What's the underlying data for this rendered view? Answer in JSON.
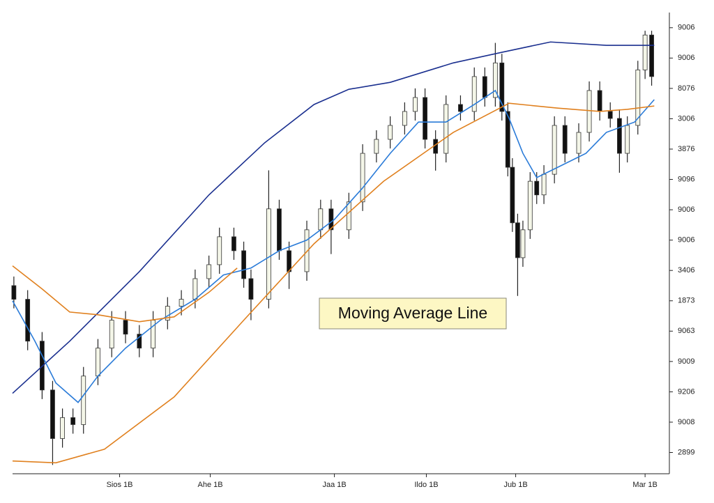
{
  "chart_data": {
    "type": "candlestick",
    "annotation": "Moving Average Line",
    "xlim": [
      0,
      100
    ],
    "ylim": [
      0.3,
      15.5
    ],
    "xticks": [
      {
        "value": 16.3,
        "label": "Sios 1B"
      },
      {
        "value": 30.1,
        "label": "Ahe 1B"
      },
      {
        "value": 49.0,
        "label": "Jaa 1B"
      },
      {
        "value": 63.0,
        "label": "Ildo 1B"
      },
      {
        "value": 76.6,
        "label": "Jub 1B"
      },
      {
        "value": 96.3,
        "label": "Mar 1B"
      }
    ],
    "yticks": [
      {
        "value": 1,
        "label": "2899"
      },
      {
        "value": 2,
        "label": "9008"
      },
      {
        "value": 3,
        "label": "9206"
      },
      {
        "value": 4,
        "label": "9009"
      },
      {
        "value": 5,
        "label": "9063"
      },
      {
        "value": 6,
        "label": "1873"
      },
      {
        "value": 7,
        "label": "3406"
      },
      {
        "value": 8,
        "label": "9006"
      },
      {
        "value": 9,
        "label": "9006"
      },
      {
        "value": 10,
        "label": "9096"
      },
      {
        "value": 11,
        "label": "3876"
      },
      {
        "value": 12,
        "label": "3006"
      },
      {
        "value": 13,
        "label": "8076"
      },
      {
        "value": 14,
        "label": "9006"
      },
      {
        "value": 15,
        "label": "9006"
      }
    ],
    "up_color": "#f4f6e8",
    "down_color": "#111111",
    "x": [
      0.2,
      2.3,
      4.5,
      6.1,
      7.6,
      9.2,
      10.8,
      13.0,
      15.1,
      17.2,
      19.3,
      21.4,
      23.6,
      25.7,
      27.8,
      29.9,
      31.5,
      33.7,
      35.2,
      36.3,
      39.0,
      40.6,
      42.1,
      44.8,
      46.9,
      48.5,
      51.2,
      53.3,
      55.4,
      57.5,
      59.7,
      61.3,
      62.8,
      64.4,
      66.0,
      68.2,
      70.3,
      71.9,
      73.5,
      74.5,
      75.4,
      76.1,
      76.9,
      77.7,
      78.8,
      79.8,
      80.9,
      82.5,
      84.1,
      86.2,
      87.8,
      89.4,
      91.0,
      92.4,
      93.6,
      95.2,
      96.3,
      97.3
    ],
    "open": [
      6.5,
      6.05,
      4.67,
      3.06,
      1.46,
      2.15,
      1.92,
      3.52,
      4.44,
      5.36,
      4.9,
      4.44,
      5.36,
      5.82,
      6.05,
      6.73,
      7.19,
      8.11,
      7.65,
      6.73,
      6.05,
      9.03,
      7.65,
      6.96,
      8.34,
      9.03,
      8.34,
      9.26,
      10.86,
      11.32,
      11.78,
      12.24,
      12.7,
      11.32,
      10.86,
      12.47,
      12.24,
      13.39,
      12.7,
      13.84,
      12.24,
      10.4,
      8.57,
      7.42,
      8.34,
      9.94,
      9.49,
      10.17,
      11.78,
      10.86,
      11.55,
      12.93,
      12.24,
      12.01,
      10.86,
      11.78,
      13.61,
      14.76
    ],
    "high": [
      6.8,
      6.35,
      4.97,
      3.36,
      2.45,
      2.45,
      3.82,
      4.74,
      5.66,
      5.66,
      5.2,
      5.66,
      6.12,
      6.35,
      7.03,
      7.49,
      8.41,
      8.41,
      7.95,
      7.03,
      10.3,
      9.33,
      7.95,
      8.64,
      9.33,
      9.33,
      9.56,
      11.16,
      11.62,
      12.08,
      12.54,
      13.0,
      13.0,
      11.62,
      12.77,
      12.77,
      13.69,
      13.69,
      14.5,
      14.14,
      12.54,
      10.7,
      8.87,
      8.64,
      10.24,
      10.24,
      10.47,
      12.08,
      12.08,
      11.85,
      13.23,
      13.23,
      12.54,
      12.31,
      12.08,
      13.91,
      14.9,
      14.9
    ],
    "low": [
      5.75,
      4.37,
      2.76,
      0.59,
      1.16,
      1.62,
      1.62,
      3.22,
      4.14,
      4.6,
      4.14,
      4.14,
      5.06,
      5.52,
      5.75,
      6.43,
      6.89,
      7.35,
      6.43,
      5.36,
      5.75,
      7.35,
      6.39,
      6.66,
      8.04,
      7.54,
      8.04,
      8.96,
      10.56,
      11.02,
      11.48,
      11.94,
      11.02,
      10.29,
      10.56,
      11.94,
      11.94,
      12.4,
      12.4,
      11.94,
      10.1,
      8.27,
      6.16,
      7.12,
      8.04,
      9.19,
      9.19,
      9.87,
      10.56,
      10.56,
      11.25,
      11.94,
      11.71,
      10.22,
      10.56,
      11.48,
      13.31,
      13.09
    ],
    "close": [
      6.05,
      4.67,
      3.06,
      1.46,
      2.15,
      1.92,
      3.52,
      4.44,
      5.36,
      4.9,
      4.44,
      5.36,
      5.82,
      6.05,
      6.73,
      7.19,
      8.11,
      7.65,
      6.73,
      6.05,
      9.03,
      7.65,
      6.96,
      8.34,
      9.03,
      8.34,
      9.26,
      10.86,
      11.32,
      11.78,
      12.24,
      12.7,
      11.32,
      10.86,
      12.47,
      12.24,
      13.39,
      12.7,
      13.84,
      12.24,
      10.4,
      8.57,
      7.42,
      8.34,
      9.94,
      9.49,
      10.17,
      11.78,
      10.86,
      11.55,
      12.93,
      12.24,
      12.01,
      10.86,
      11.78,
      13.61,
      14.76,
      13.39
    ],
    "lines": [
      {
        "color": "#1a2f8f",
        "x": [
          0,
          8.7,
          19.3,
          29.9,
          38.4,
          45.9,
          51.2,
          57.5,
          67.1,
          74.5,
          81.9,
          90.4,
          97.7
        ],
        "values": [
          2.95,
          4.67,
          6.96,
          9.49,
          11.21,
          12.47,
          12.97,
          13.2,
          13.84,
          14.19,
          14.53,
          14.42,
          14.42
        ]
      },
      {
        "color": "#2a7bd8",
        "x": [
          0,
          3.4,
          6.6,
          9.98,
          13.0,
          17.2,
          22.5,
          27.8,
          32.1,
          36.3,
          40.6,
          44.8,
          49.0,
          53.3,
          57.5,
          61.8,
          66.0,
          70.3,
          73.5,
          75.6,
          77.7,
          79.8,
          83.0,
          87.3,
          90.4,
          94.7,
          97.7
        ],
        "values": [
          6.0,
          4.67,
          3.29,
          2.65,
          3.52,
          4.44,
          5.36,
          6.05,
          6.85,
          7.08,
          7.65,
          8.0,
          8.68,
          9.72,
          10.86,
          11.89,
          11.89,
          12.47,
          12.93,
          12.01,
          10.86,
          10.06,
          10.4,
          10.86,
          11.55,
          11.89,
          12.63
        ]
      },
      {
        "color": "#e0801e",
        "x": [
          0,
          6.6,
          14.0,
          24.6,
          35.2,
          45.9,
          56.5,
          67.1,
          75.6,
          83.0,
          89.4,
          93.6,
          97.7
        ],
        "values": [
          0.72,
          0.66,
          1.11,
          2.83,
          5.36,
          7.88,
          9.94,
          11.55,
          12.51,
          12.35,
          12.24,
          12.31,
          12.42
        ]
      },
      {
        "color": "#e0801e",
        "x": [
          0,
          4.5,
          8.7,
          13.0,
          19.3,
          24.6,
          29.9,
          34.2
        ],
        "values": [
          7.15,
          6.39,
          5.63,
          5.54,
          5.31,
          5.47,
          6.28,
          7.08
        ]
      }
    ]
  }
}
